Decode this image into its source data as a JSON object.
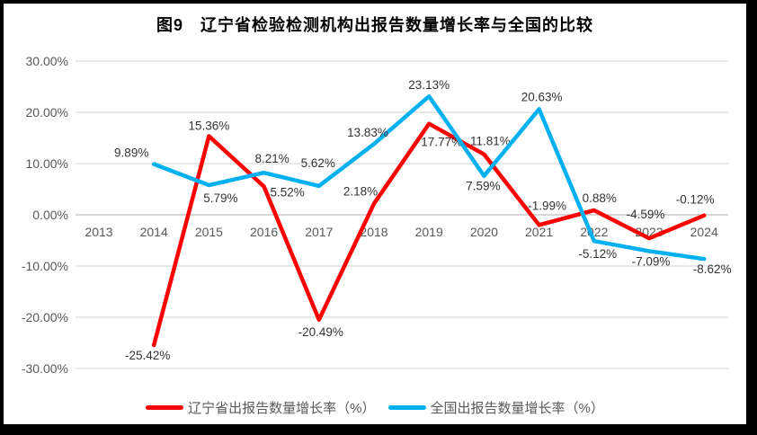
{
  "frame": {
    "background": "#FFFFFF",
    "border_color": "#000000"
  },
  "chart_data": {
    "type": "line",
    "title": "图9　辽宁省检验检测机构出报告数量增长率与全国的比较",
    "categories": [
      "2013",
      "2014",
      "2015",
      "2016",
      "2017",
      "2018",
      "2019",
      "2020",
      "2021",
      "2022",
      "2023",
      "2024"
    ],
    "ylim": [
      -30,
      30
    ],
    "ytick_step": 10,
    "yticks": [
      {
        "value": 30,
        "label": "30.00%"
      },
      {
        "value": 20,
        "label": "20.00%"
      },
      {
        "value": 10,
        "label": "10.00%"
      },
      {
        "value": 0,
        "label": "0.00%"
      },
      {
        "value": -10,
        "label": "-10.00%"
      },
      {
        "value": -20,
        "label": "-20.00%"
      },
      {
        "value": -30,
        "label": "-30.00%"
      }
    ],
    "grid": true,
    "grid_color": "#D9D9D9",
    "zero_line_color": "#BFBFBF",
    "axis_label_color": "#595959",
    "data_label_color": "#333333",
    "legend_position": "bottom",
    "series": [
      {
        "name": "辽宁省出报告数量增长率（%）",
        "color": "#FF0000",
        "points": [
          {
            "category": "2014",
            "value": -25.42,
            "label": "-25.42%",
            "dx": -7,
            "dy": 16
          },
          {
            "category": "2015",
            "value": 15.36,
            "label": "15.36%",
            "dx": 0,
            "dy": -7
          },
          {
            "category": "2016",
            "value": 5.52,
            "label": "5.52%",
            "dx": 26,
            "dy": 11
          },
          {
            "category": "2017",
            "value": -20.49,
            "label": "-20.49%",
            "dx": 2,
            "dy": 18
          },
          {
            "category": "2018",
            "value": 2.18,
            "label": "2.18%",
            "dx": -15,
            "dy": -9
          },
          {
            "category": "2019",
            "value": 17.77,
            "label": "17.77%",
            "dx": 14,
            "dy": 25
          },
          {
            "category": "2020",
            "value": 11.81,
            "label": "11.81%",
            "dx": 7,
            "dy": -10
          },
          {
            "category": "2021",
            "value": -1.99,
            "label": "-1.99%",
            "dx": 9,
            "dy": -17
          },
          {
            "category": "2022",
            "value": 0.88,
            "label": "0.88%",
            "dx": 6,
            "dy": -9
          },
          {
            "category": "2023",
            "value": -4.59,
            "label": "-4.59%",
            "dx": -4,
            "dy": -22
          },
          {
            "category": "2024",
            "value": -0.12,
            "label": "-0.12%",
            "dx": -10,
            "dy": -13
          }
        ]
      },
      {
        "name": "全国出报告数量增长率（%）",
        "color": "#00B0F0",
        "points": [
          {
            "category": "2014",
            "value": 9.89,
            "label": "9.89%",
            "dx": -25,
            "dy": -8
          },
          {
            "category": "2015",
            "value": 5.79,
            "label": "5.79%",
            "dx": 13,
            "dy": 19
          },
          {
            "category": "2016",
            "value": 8.21,
            "label": "8.21%",
            "dx": 9,
            "dy": -11
          },
          {
            "category": "2017",
            "value": 5.62,
            "label": "5.62%",
            "dx": -1,
            "dy": -21
          },
          {
            "category": "2018",
            "value": 13.83,
            "label": "13.83%",
            "dx": -7,
            "dy": -8
          },
          {
            "category": "2019",
            "value": 23.13,
            "label": "23.13%",
            "dx": 0,
            "dy": -8
          },
          {
            "category": "2020",
            "value": 7.59,
            "label": "7.59%",
            "dx": -1,
            "dy": 16
          },
          {
            "category": "2021",
            "value": 20.63,
            "label": "20.63%",
            "dx": 3,
            "dy": -9
          },
          {
            "category": "2022",
            "value": -5.12,
            "label": "-5.12%",
            "dx": 4,
            "dy": 19
          },
          {
            "category": "2023",
            "value": -7.09,
            "label": "-7.09%",
            "dx": 2,
            "dy": 16
          },
          {
            "category": "2024",
            "value": -8.62,
            "label": "-8.62%",
            "dx": 9,
            "dy": 16
          }
        ]
      }
    ]
  }
}
